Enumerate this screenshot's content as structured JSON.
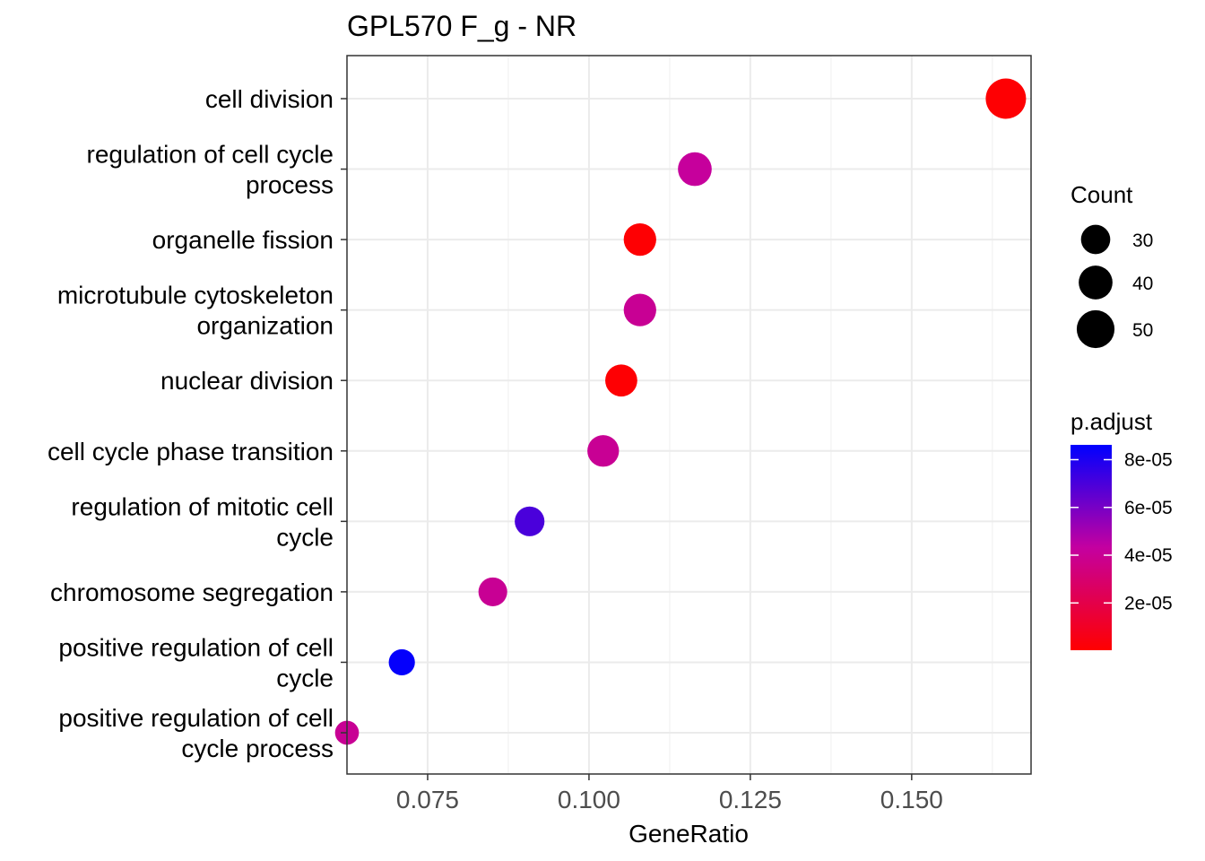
{
  "chart_data": {
    "type": "scatter",
    "title": "GPL570 F_g - NR",
    "xlabel": "GeneRatio",
    "ylabel": "",
    "xlim": [
      0.0625,
      0.1685
    ],
    "xticks": [
      "0.075",
      "0.100",
      "0.125",
      "0.150"
    ],
    "xtick_values": [
      0.075,
      0.1,
      0.125,
      0.15
    ],
    "grid": true,
    "categories": [
      [
        "cell division"
      ],
      [
        "regulation of cell cycle",
        "process"
      ],
      [
        "organelle fission"
      ],
      [
        "microtubule cytoskeleton",
        "organization"
      ],
      [
        "nuclear division"
      ],
      [
        "cell cycle phase transition"
      ],
      [
        "regulation of mitotic cell",
        "cycle"
      ],
      [
        "chromosome segregation"
      ],
      [
        "positive regulation of cell",
        "cycle"
      ],
      [
        "positive regulation of cell",
        "cycle process"
      ]
    ],
    "points": [
      {
        "gene_ratio": 0.1646,
        "count": 57,
        "p_adjust": 1e-06
      },
      {
        "gene_ratio": 0.1164,
        "count": 40,
        "p_adjust": 4.2e-05
      },
      {
        "gene_ratio": 0.1079,
        "count": 37,
        "p_adjust": 1e-06
      },
      {
        "gene_ratio": 0.1079,
        "count": 37,
        "p_adjust": 4e-05
      },
      {
        "gene_ratio": 0.105,
        "count": 36,
        "p_adjust": 1e-06
      },
      {
        "gene_ratio": 0.1022,
        "count": 35,
        "p_adjust": 4e-05
      },
      {
        "gene_ratio": 0.0908,
        "count": 31,
        "p_adjust": 7e-05
      },
      {
        "gene_ratio": 0.0851,
        "count": 29,
        "p_adjust": 4e-05
      },
      {
        "gene_ratio": 0.071,
        "count": 24,
        "p_adjust": 8.5e-05
      },
      {
        "gene_ratio": 0.0625,
        "count": 20,
        "p_adjust": 4e-05
      }
    ],
    "legend_size": {
      "title": "Count",
      "entries": [
        {
          "label": "30",
          "value": 30
        },
        {
          "label": "40",
          "value": 40
        },
        {
          "label": "50",
          "value": 50
        }
      ]
    },
    "legend_color": {
      "title": "p.adjust",
      "min": 2e-07,
      "max": 8.62e-05,
      "low_color": "#ff0000",
      "high_color": "#0000ff",
      "ticks": [
        {
          "label": "8e-05",
          "value": 8e-05
        },
        {
          "label": "6e-05",
          "value": 6e-05
        },
        {
          "label": "4e-05",
          "value": 4e-05
        },
        {
          "label": "2e-05",
          "value": 2e-05
        }
      ]
    },
    "legend_placement": "right"
  }
}
